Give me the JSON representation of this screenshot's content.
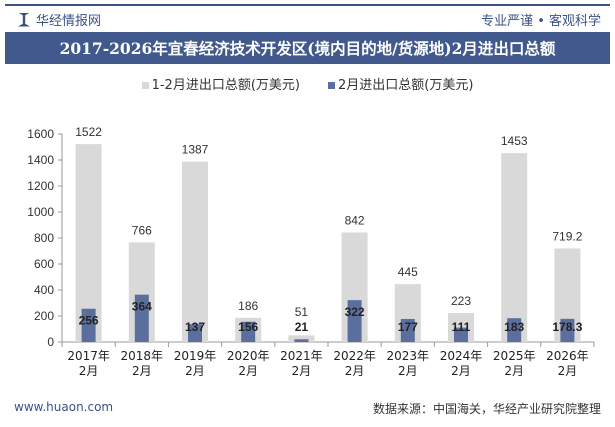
{
  "header": {
    "brand": "华经情报网",
    "slogan": "专业严谨 • 客观科学",
    "title": "2017-2026年宜春经济技术开发区(境内目的地/货源地)2月进出口总额"
  },
  "footer": {
    "website": "www.huaon.com",
    "source": "数据来源：中国海关，华经产业研究院整理"
  },
  "chart_data": {
    "type": "bar",
    "title": "2017-2026年宜春经济技术开发区(境内目的地/货源地)2月进出口总额",
    "categories": [
      "2017年\n2月",
      "2018年\n2月",
      "2019年\n2月",
      "2020年\n2月",
      "2021年\n2月",
      "2022年\n2月",
      "2023年\n2月",
      "2024年\n2月",
      "2025年\n2月",
      "2026年\n2月"
    ],
    "series": [
      {
        "name": "1-2月进出口总额(万美元)",
        "color": "#d9d9d9",
        "values": [
          1522,
          766,
          1387,
          186,
          51,
          842,
          445,
          223,
          1453,
          719.2
        ]
      },
      {
        "name": "2月进出口总额(万美元)",
        "color": "#5b6f9e",
        "values": [
          256,
          364,
          137,
          156,
          21,
          322,
          177,
          111,
          183,
          178.3
        ]
      }
    ],
    "ylim": [
      0,
      1600
    ],
    "yticks": [
      0,
      200,
      400,
      600,
      800,
      1000,
      1200,
      1400,
      1600
    ],
    "grid": false,
    "legend": "top"
  }
}
